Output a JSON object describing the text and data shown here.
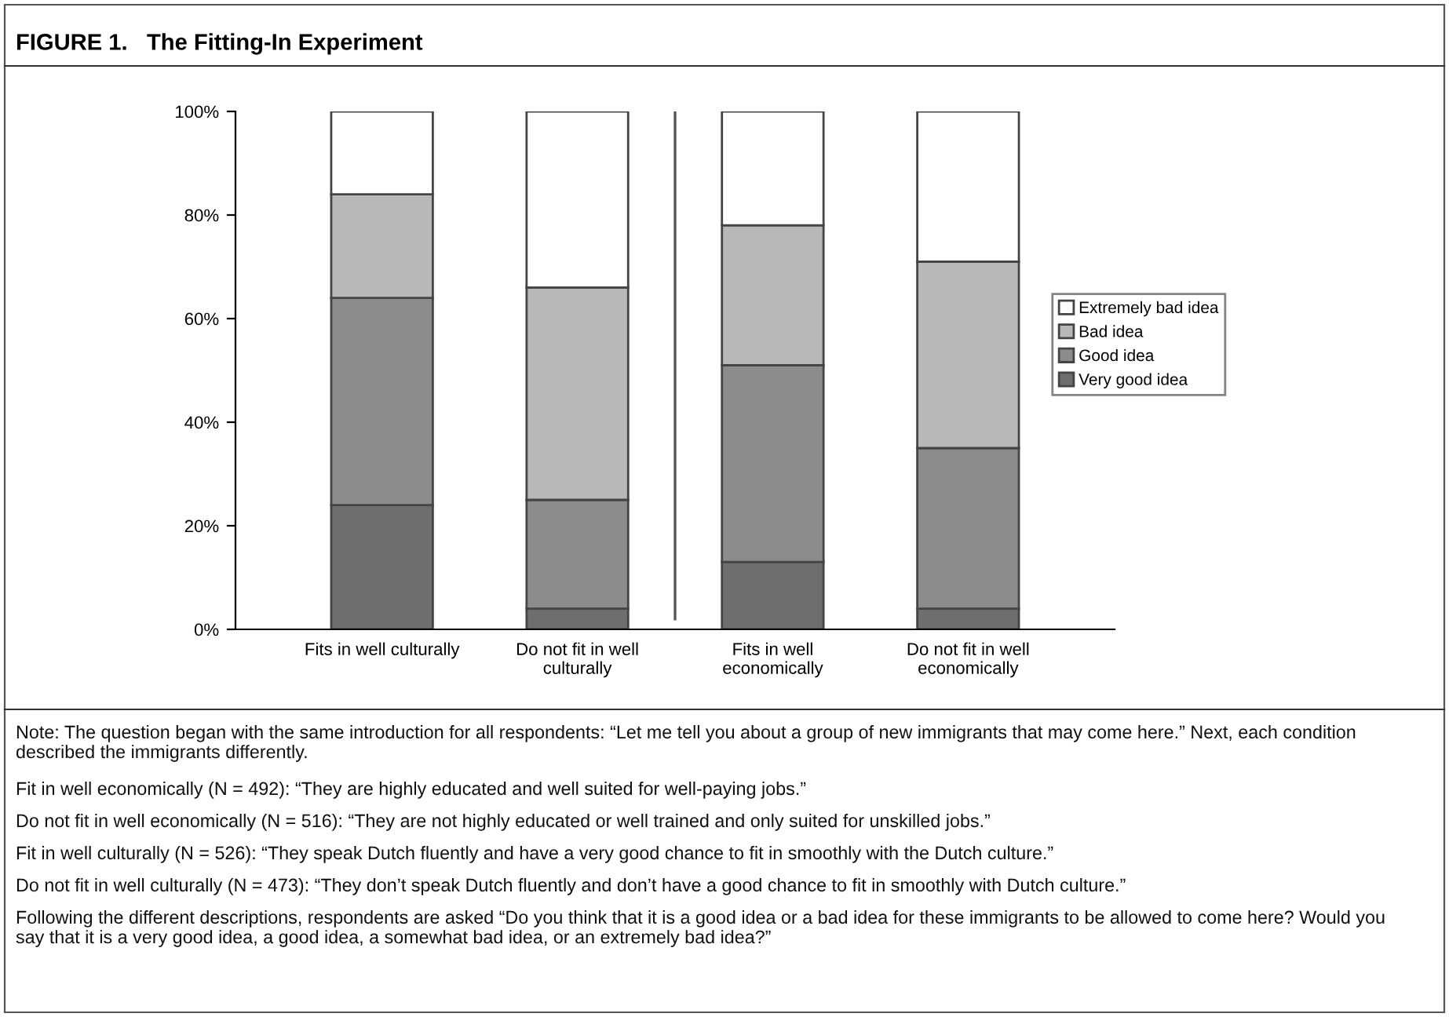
{
  "chart_data": {
    "type": "bar",
    "title": "FIGURE 1.   The Fitting-In Experiment",
    "categories": [
      "Fits in well culturally",
      "Do not fit in well culturally",
      "Fits in well economically",
      "Do not fit in well economically"
    ],
    "stacked": true,
    "series": [
      {
        "name": "Very good idea",
        "color": "#6e6e6e",
        "values": [
          24,
          4,
          13,
          4
        ]
      },
      {
        "name": "Good idea",
        "color": "#8c8c8c",
        "values": [
          40,
          21,
          38,
          31
        ]
      },
      {
        "name": "Bad idea",
        "color": "#b8b8b8",
        "values": [
          20,
          41,
          27,
          36
        ]
      },
      {
        "name": "Extremely bad idea",
        "color": "#ffffff",
        "values": [
          16,
          34,
          22,
          29
        ]
      }
    ],
    "ylim": [
      0,
      100
    ],
    "yticks": [
      {
        "value": 0,
        "label": "0%"
      },
      {
        "value": 20,
        "label": "20%"
      },
      {
        "value": 40,
        "label": "40%"
      },
      {
        "value": 60,
        "label": "60%"
      },
      {
        "value": 80,
        "label": "80%"
      },
      {
        "value": 100,
        "label": "100%"
      }
    ],
    "grid": false,
    "legend": "right",
    "annotations": [
      "Note: The question began with the same introduction for all respondents: “Let me tell you about a group of new immigrants that may come here.” Next, each condition described the immigrants differently.",
      "Fit in well economically (N = 492): “They are highly educated and well suited for well-paying jobs.”",
      "Do not fit in well economically (N = 516): “They are not highly educated or well trained and only suited for unskilled jobs.”",
      "Fit in well culturally (N = 526): “They speak Dutch fluently and have a very good chance to fit in smoothly with the Dutch culture.”",
      "Do not fit in well culturally (N = 473): “They don’t speak Dutch fluently and don’t have a good chance to fit in smoothly with Dutch culture.”",
      "Following the different descriptions, respondents are asked “Do you think that it is a good idea or a bad idea for these immigrants to be allowed to come here? Would you say that it is a very good idea, a good idea, a somewhat bad idea, or an extremely bad idea?”"
    ]
  }
}
